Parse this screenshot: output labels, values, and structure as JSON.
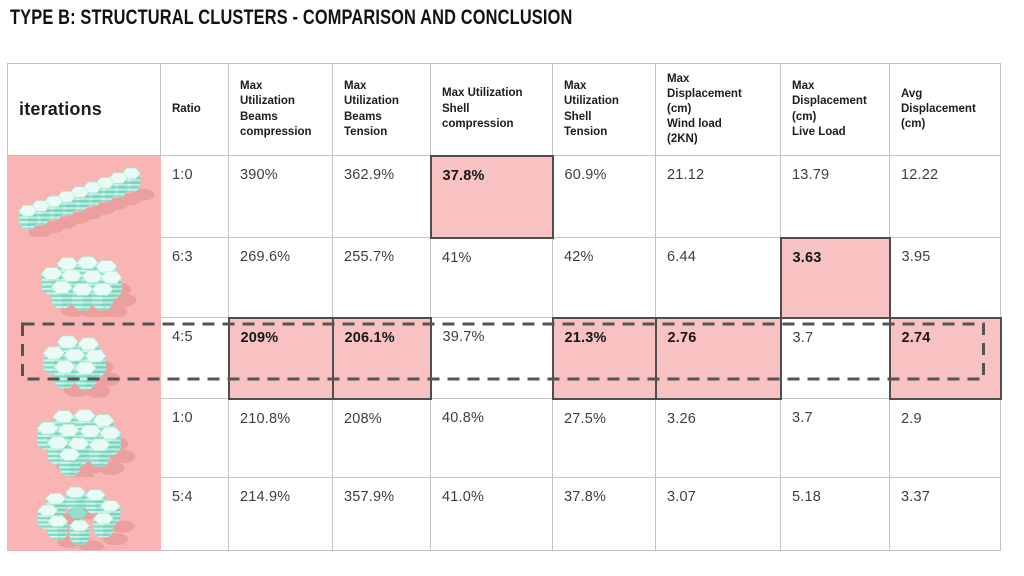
{
  "title": "TYPE B: STRUCTURAL CLUSTERS - COMPARISON AND CONCLUSION",
  "table": {
    "headers": [
      "iterations",
      "Ratio",
      "Max\nUtilization\nBeams\ncompression",
      "Max\nUtilization\nBeams\nTension",
      "Max Utilization\nShell\ncompression",
      "Max\nUtilization\nShell\nTension",
      "Max\nDisplacement\n(cm)\nWind load\n(2KN)",
      "Max\nDisplacement\n(cm)\nLive Load",
      "Avg\nDisplacement\n(cm)"
    ],
    "rows": [
      {
        "shape": "linear-diagonal-cluster",
        "ratio": "1:0",
        "values": [
          "390%",
          "362.9%",
          "37.8%",
          "60.9%",
          "21.12",
          "13.79",
          "12.22"
        ],
        "highlighted": [
          2
        ],
        "selected": false
      },
      {
        "shape": "l-shaped-cluster",
        "ratio": "6:3",
        "values": [
          "269.6%",
          "255.7%",
          "41%",
          "42%",
          "6.44",
          "3.63",
          "3.95"
        ],
        "highlighted": [
          5
        ],
        "selected": false
      },
      {
        "shape": "compact-cluster",
        "ratio": "4:5",
        "values": [
          "209%",
          "206.1%",
          "39.7%",
          "21.3%",
          "2.76",
          "3.7",
          "2.74"
        ],
        "highlighted": [
          0,
          1,
          3,
          4,
          6
        ],
        "selected": true
      },
      {
        "shape": "stepped-cluster",
        "ratio": "1:0",
        "values": [
          "210.8%",
          "208%",
          "40.8%",
          "27.5%",
          "3.26",
          "3.7",
          "2.9"
        ],
        "highlighted": [],
        "selected": false
      },
      {
        "shape": "ring-cluster",
        "ratio": "5:4",
        "values": [
          "214.9%",
          "357.9%",
          "41.0%",
          "37.8%",
          "3.07",
          "5.18",
          "3.37"
        ],
        "highlighted": [],
        "selected": false
      }
    ]
  },
  "colors": {
    "iteration_column_bg": "#f9b4b4",
    "highlight_cell_bg": "#f9c2c2",
    "highlight_cell_border": "#4d4d4d",
    "grid_line": "#c4c4c4",
    "cluster_mint": "#aceedd",
    "cluster_shadow": "#ec9f9f",
    "selection_dash": "#545454"
  }
}
